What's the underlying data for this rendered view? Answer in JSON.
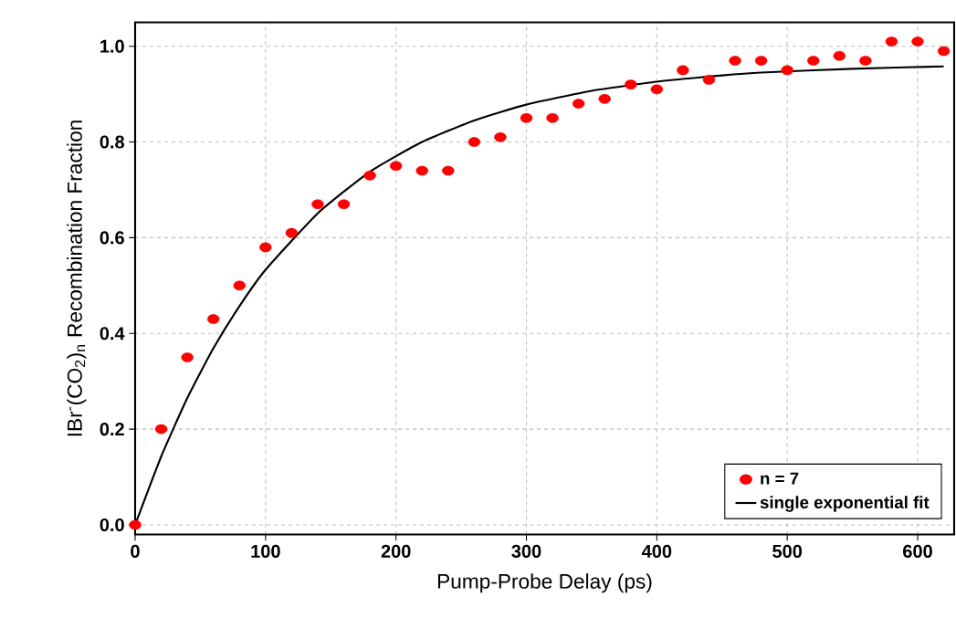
{
  "chart_data": {
    "type": "scatter",
    "xlabel": "Pump-Probe Delay (ps)",
    "ylabel": "IBr$^{-}$(CO$_{2}$)$_{n}$ Recombination Fraction",
    "xlim": [
      0,
      628
    ],
    "ylim": [
      -0.02,
      1.05
    ],
    "xticks": [
      0,
      100,
      200,
      300,
      400,
      500,
      600
    ],
    "yticks": [
      {
        "value": 0,
        "label": "0.0"
      },
      {
        "value": 0.2,
        "label": "0.2"
      },
      {
        "value": 0.4,
        "label": "0.4"
      },
      {
        "value": 0.6,
        "label": "0.6"
      },
      {
        "value": 0.8,
        "label": "0.8"
      },
      {
        "value": 1,
        "label": "1.0"
      }
    ],
    "grid": true,
    "legend": "bottom right",
    "series": [
      {
        "name": "n = 7",
        "color": "#ff0000",
        "marker": "circle",
        "x": [
          0,
          20,
          40,
          60,
          80,
          100,
          120,
          140,
          160,
          180,
          200,
          220,
          240,
          260,
          280,
          300,
          320,
          340,
          360,
          380,
          400,
          420,
          440,
          460,
          480,
          500,
          520,
          540,
          560,
          580,
          600,
          620
        ],
        "values": [
          0.0,
          0.2,
          0.35,
          0.43,
          0.5,
          0.58,
          0.61,
          0.67,
          0.67,
          0.73,
          0.75,
          0.74,
          0.74,
          0.8,
          0.81,
          0.85,
          0.85,
          0.88,
          0.89,
          0.92,
          0.91,
          0.95,
          0.93,
          0.97,
          0.97,
          0.95,
          0.97,
          0.98,
          0.97,
          1.01,
          1.01,
          0.99
        ]
      },
      {
        "name": "single exponential fit",
        "type": "line",
        "color": "#000000",
        "marker": "none",
        "line_style": "solid",
        "x": [
          0,
          20,
          40,
          60,
          80,
          100,
          140,
          180,
          220,
          260,
          300,
          350,
          400,
          450,
          480,
          550,
          620
        ],
        "values": [
          0.0,
          0.143,
          0.265,
          0.369,
          0.457,
          0.533,
          0.651,
          0.738,
          0.8,
          0.845,
          0.878,
          0.907,
          0.926,
          0.939,
          0.945,
          0.953,
          0.958
        ]
      }
    ]
  }
}
